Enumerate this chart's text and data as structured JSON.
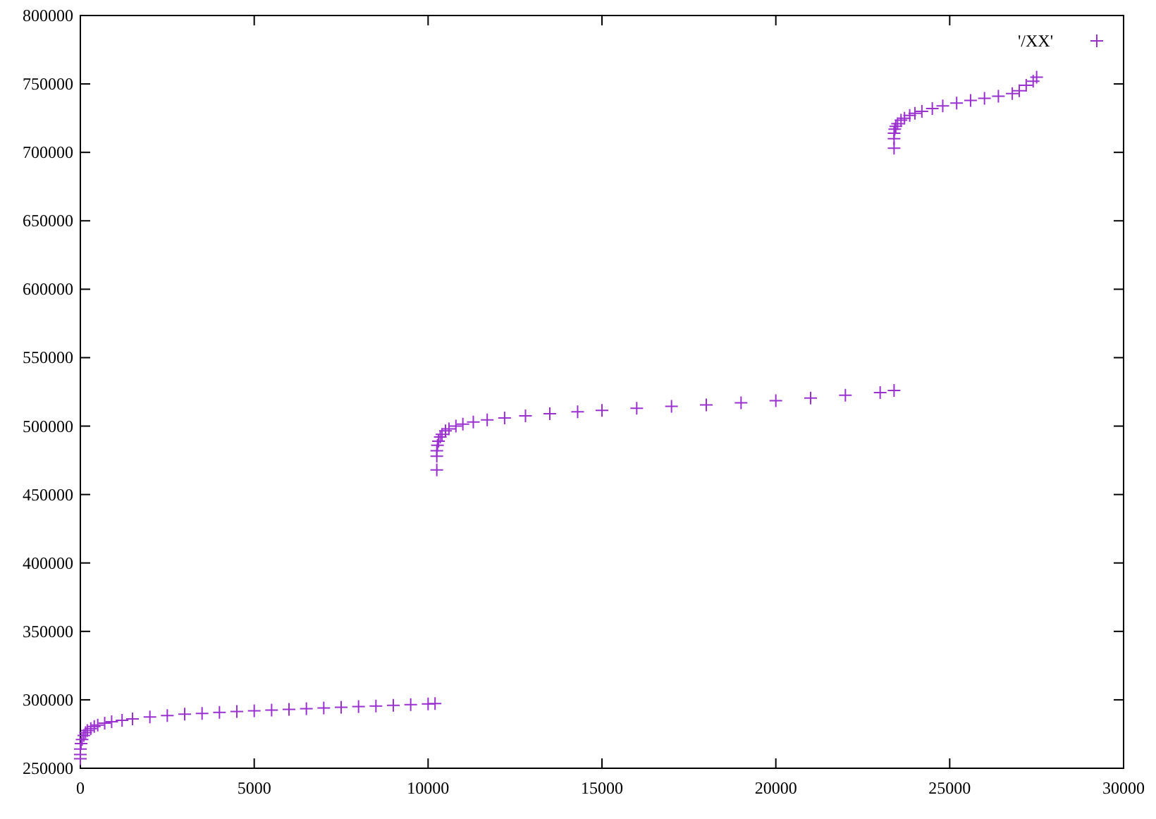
{
  "chart_data": {
    "type": "scatter",
    "marker": "cross",
    "legend": "top right",
    "grid": false,
    "xlim": [
      0,
      30000
    ],
    "xticks": [
      0,
      5000,
      10000,
      15000,
      20000,
      25000,
      30000
    ],
    "ylim": [
      250000,
      800000
    ],
    "yticks": [
      250000,
      300000,
      350000,
      400000,
      450000,
      500000,
      550000,
      600000,
      650000,
      700000,
      750000,
      800000
    ],
    "series": [
      {
        "name": "'/XX'",
        "color": "#9b30d0",
        "x": [
          0,
          0,
          0,
          20,
          50,
          100,
          150,
          200,
          300,
          400,
          500,
          700,
          900,
          1200,
          1500,
          2000,
          2500,
          3000,
          3500,
          4000,
          4500,
          5000,
          5500,
          6000,
          6500,
          7000,
          7500,
          8000,
          8500,
          9000,
          9500,
          10000,
          10200,
          10250,
          10250,
          10250,
          10270,
          10300,
          10350,
          10400,
          10500,
          10600,
          10800,
          11000,
          11300,
          11700,
          12200,
          12800,
          13500,
          14300,
          15000,
          16000,
          17000,
          18000,
          19000,
          20000,
          21000,
          22000,
          23000,
          23400,
          23400,
          23400,
          23400,
          23420,
          23450,
          23500,
          23600,
          23700,
          23850,
          24000,
          24200,
          24500,
          24800,
          25200,
          25600,
          26000,
          26400,
          26800,
          27000,
          27200,
          27400,
          27500
        ],
        "values": [
          257000,
          260000,
          264000,
          268000,
          271000,
          274000,
          276000,
          277500,
          279000,
          280500,
          281500,
          283000,
          284000,
          285000,
          286000,
          287500,
          288500,
          289500,
          290000,
          290800,
          291500,
          292000,
          292500,
          293000,
          293500,
          294000,
          294500,
          295000,
          295500,
          296000,
          296500,
          297000,
          297200,
          468000,
          478000,
          482000,
          486000,
          489000,
          492000,
          494000,
          496500,
          498000,
          500000,
          501500,
          503000,
          504500,
          506000,
          507500,
          509000,
          510500,
          511500,
          513000,
          514500,
          515500,
          517000,
          518500,
          520500,
          522500,
          524500,
          526000,
          703000,
          710000,
          714000,
          717000,
          719000,
          721000,
          723500,
          725000,
          727000,
          728500,
          730000,
          732000,
          734000,
          736000,
          738000,
          739500,
          741000,
          743000,
          745000,
          749000,
          752000,
          755000
        ]
      }
    ]
  }
}
